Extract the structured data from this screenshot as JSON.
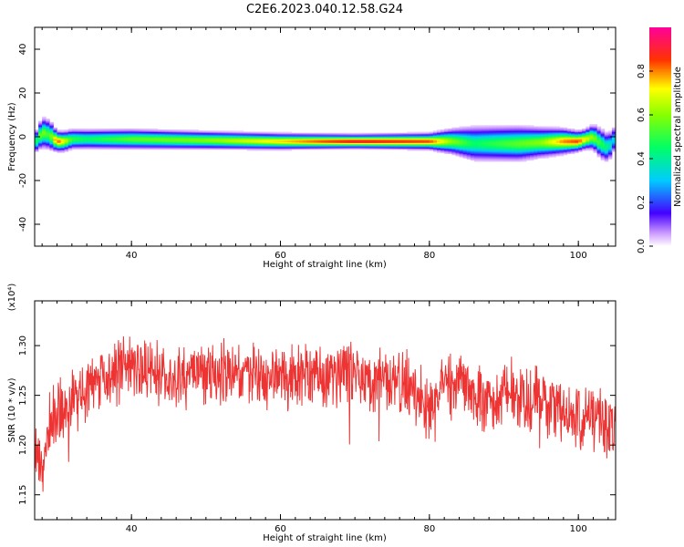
{
  "chart_title": "C2E6.2023.040.12.58.G24",
  "chart_data": [
    {
      "type": "heatmap",
      "xlabel": "Height of straight line (km)",
      "ylabel": "Frequency (Hz)",
      "xlim": [
        27,
        105
      ],
      "ylim": [
        -50,
        50
      ],
      "xticks": [
        40,
        60,
        80,
        100
      ],
      "yticks": [
        -40,
        -20,
        0,
        20,
        40
      ],
      "ridge": {
        "x": [
          27,
          28,
          29,
          30,
          31,
          32,
          34,
          40,
          50,
          60,
          70,
          80,
          83,
          86,
          89,
          92,
          95,
          98,
          100,
          101,
          102,
          103,
          104,
          105
        ],
        "freq": [
          -3,
          2,
          1,
          -2,
          -2,
          -1,
          -1,
          -1,
          -1.5,
          -2,
          -2,
          -2,
          -2,
          -3,
          -3,
          -3,
          -2.5,
          -2,
          -2,
          -1,
          0,
          -3,
          -5,
          0
        ],
        "amp": [
          0.4,
          0.6,
          0.5,
          0.85,
          0.7,
          0.5,
          0.45,
          0.55,
          0.6,
          0.75,
          0.92,
          0.85,
          0.6,
          0.45,
          0.5,
          0.55,
          0.6,
          0.8,
          0.85,
          0.7,
          0.6,
          0.5,
          0.4,
          0.3
        ],
        "width": [
          2,
          3,
          3,
          2,
          2,
          2,
          2,
          2,
          1.8,
          1.6,
          1.4,
          1.6,
          2.5,
          3.5,
          3.5,
          3.5,
          3,
          2.5,
          2,
          2,
          2.5,
          3,
          3,
          2.5
        ]
      },
      "colorbar": {
        "label": "Normalized spectral amplitude",
        "range": [
          0,
          1
        ],
        "ticks": [
          0.0,
          0.2,
          0.4,
          0.6,
          0.8
        ],
        "tick_labels": [
          "0.0",
          "0.2",
          "0.4",
          "0.6",
          "0.8"
        ],
        "colormap": "rainbow (white/violet at 0, blue, cyan, green, yellow, red, magenta at 1)"
      }
    },
    {
      "type": "line",
      "xlabel": "Height of straight line (km)",
      "ylabel": "SNR (10 * v/v)",
      "y_multiplier": "(x10⁴)",
      "xlim": [
        27,
        105
      ],
      "ylim": [
        1.125,
        1.345
      ],
      "xticks": [
        40,
        60,
        80,
        100
      ],
      "yticks": [
        1.15,
        1.2,
        1.25,
        1.3
      ],
      "ytick_labels": [
        "1.15",
        "1.20",
        "1.25",
        "1.30"
      ],
      "color": "#ee3333",
      "grid": false,
      "series": [
        {
          "x": [
            27,
            28,
            29,
            30,
            32,
            34,
            36,
            38,
            40,
            42,
            44,
            46,
            48,
            50,
            52,
            54,
            56,
            58,
            60,
            62,
            64,
            66,
            68,
            70,
            72,
            74,
            76,
            78,
            80,
            82,
            84,
            86,
            88,
            90,
            92,
            94,
            96,
            98,
            100,
            102,
            104,
            105
          ],
          "y": [
            1.19,
            1.175,
            1.22,
            1.235,
            1.24,
            1.255,
            1.265,
            1.27,
            1.28,
            1.275,
            1.27,
            1.268,
            1.272,
            1.27,
            1.275,
            1.275,
            1.27,
            1.268,
            1.27,
            1.265,
            1.27,
            1.268,
            1.272,
            1.27,
            1.268,
            1.265,
            1.265,
            1.255,
            1.235,
            1.26,
            1.26,
            1.25,
            1.235,
            1.25,
            1.245,
            1.25,
            1.24,
            1.235,
            1.225,
            1.23,
            1.215,
            1.21
          ]
        }
      ]
    }
  ]
}
